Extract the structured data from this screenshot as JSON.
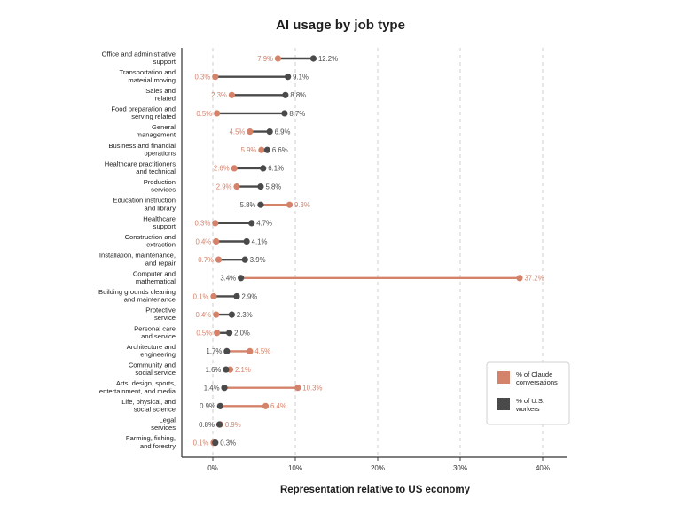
{
  "chart_data": {
    "type": "dumbbell",
    "title": "AI usage by job type",
    "xlabel": "Representation relative to US economy",
    "ylabel": "",
    "xlim": [
      -3.5,
      43
    ],
    "xticks": [
      0,
      10,
      20,
      30,
      40
    ],
    "xtick_labels": [
      "0%",
      "10%",
      "20%",
      "30%",
      "40%"
    ],
    "grid": "vertical dashed",
    "legend_placement": "lower-right",
    "colors": {
      "claude": "#d4826a",
      "workers": "#4a4a4a"
    },
    "series": [
      {
        "name": "% of Claude conversations",
        "key": "claude",
        "labels": [
          "7.9%",
          "0.3%",
          "2.3%",
          "0.5%",
          "4.5%",
          "5.9%",
          "2.6%",
          "2.9%",
          "9.3%",
          "0.3%",
          "0.4%",
          "0.7%",
          "37.2%",
          "0.1%",
          "0.4%",
          "0.5%",
          "4.5%",
          "2.1%",
          "10.3%",
          "6.4%",
          "0.9%",
          "0.1%"
        ]
      },
      {
        "name": "% of U.S. workers",
        "key": "workers",
        "labels": [
          "12.2%",
          "9.1%",
          "8.8%",
          "8.7%",
          "6.9%",
          "6.6%",
          "6.1%",
          "5.8%",
          "5.8%",
          "4.7%",
          "4.1%",
          "3.9%",
          "3.4%",
          "2.9%",
          "2.3%",
          "2.0%",
          "1.7%",
          "1.6%",
          "1.4%",
          "0.9%",
          "0.8%",
          "0.3%"
        ]
      }
    ],
    "legend": [
      {
        "key": "claude",
        "text": [
          "% of Claude",
          "conversations"
        ]
      },
      {
        "key": "workers",
        "text": [
          "% of U.S.",
          "workers"
        ]
      }
    ],
    "rows": [
      {
        "category": [
          "Office and administrative",
          "support"
        ],
        "claude": 7.9,
        "workers": 12.2
      },
      {
        "category": [
          "Transportation and",
          "material moving"
        ],
        "claude": 0.3,
        "workers": 9.1
      },
      {
        "category": [
          "Sales and",
          "related"
        ],
        "claude": 2.3,
        "workers": 8.8
      },
      {
        "category": [
          "Food preparation and",
          "serving related"
        ],
        "claude": 0.5,
        "workers": 8.7
      },
      {
        "category": [
          "General",
          "management"
        ],
        "claude": 4.5,
        "workers": 6.9
      },
      {
        "category": [
          "Business and financial",
          "operations"
        ],
        "claude": 5.9,
        "workers": 6.6
      },
      {
        "category": [
          "Healthcare practitioners",
          "and technical"
        ],
        "claude": 2.6,
        "workers": 6.1
      },
      {
        "category": [
          "Production",
          "services"
        ],
        "claude": 2.9,
        "workers": 5.8
      },
      {
        "category": [
          "Education instruction",
          "and library"
        ],
        "claude": 9.3,
        "workers": 5.8
      },
      {
        "category": [
          "Healthcare",
          "support"
        ],
        "claude": 0.3,
        "workers": 4.7
      },
      {
        "category": [
          "Construction and",
          "extraction"
        ],
        "claude": 0.4,
        "workers": 4.1
      },
      {
        "category": [
          "Installation, maintenance,",
          "and repair"
        ],
        "claude": 0.7,
        "workers": 3.9
      },
      {
        "category": [
          "Computer and",
          "mathematical"
        ],
        "claude": 37.2,
        "workers": 3.4
      },
      {
        "category": [
          "Building grounds cleaning",
          "and maintenance"
        ],
        "claude": 0.1,
        "workers": 2.9
      },
      {
        "category": [
          "Protective",
          "service"
        ],
        "claude": 0.4,
        "workers": 2.3
      },
      {
        "category": [
          "Personal care",
          "and service"
        ],
        "claude": 0.5,
        "workers": 2.0
      },
      {
        "category": [
          "Architecture and",
          "engineering"
        ],
        "claude": 4.5,
        "workers": 1.7
      },
      {
        "category": [
          "Community and",
          "social service"
        ],
        "claude": 2.1,
        "workers": 1.6
      },
      {
        "category": [
          "Arts, design, sports,",
          "entertainment, and media"
        ],
        "claude": 10.3,
        "workers": 1.4
      },
      {
        "category": [
          "Life, physical, and",
          "social science"
        ],
        "claude": 6.4,
        "workers": 0.9
      },
      {
        "category": [
          "Legal",
          "services"
        ],
        "claude": 0.9,
        "workers": 0.8
      },
      {
        "category": [
          "Farming, fishing,",
          "and forestry"
        ],
        "claude": 0.1,
        "workers": 0.3
      }
    ]
  }
}
